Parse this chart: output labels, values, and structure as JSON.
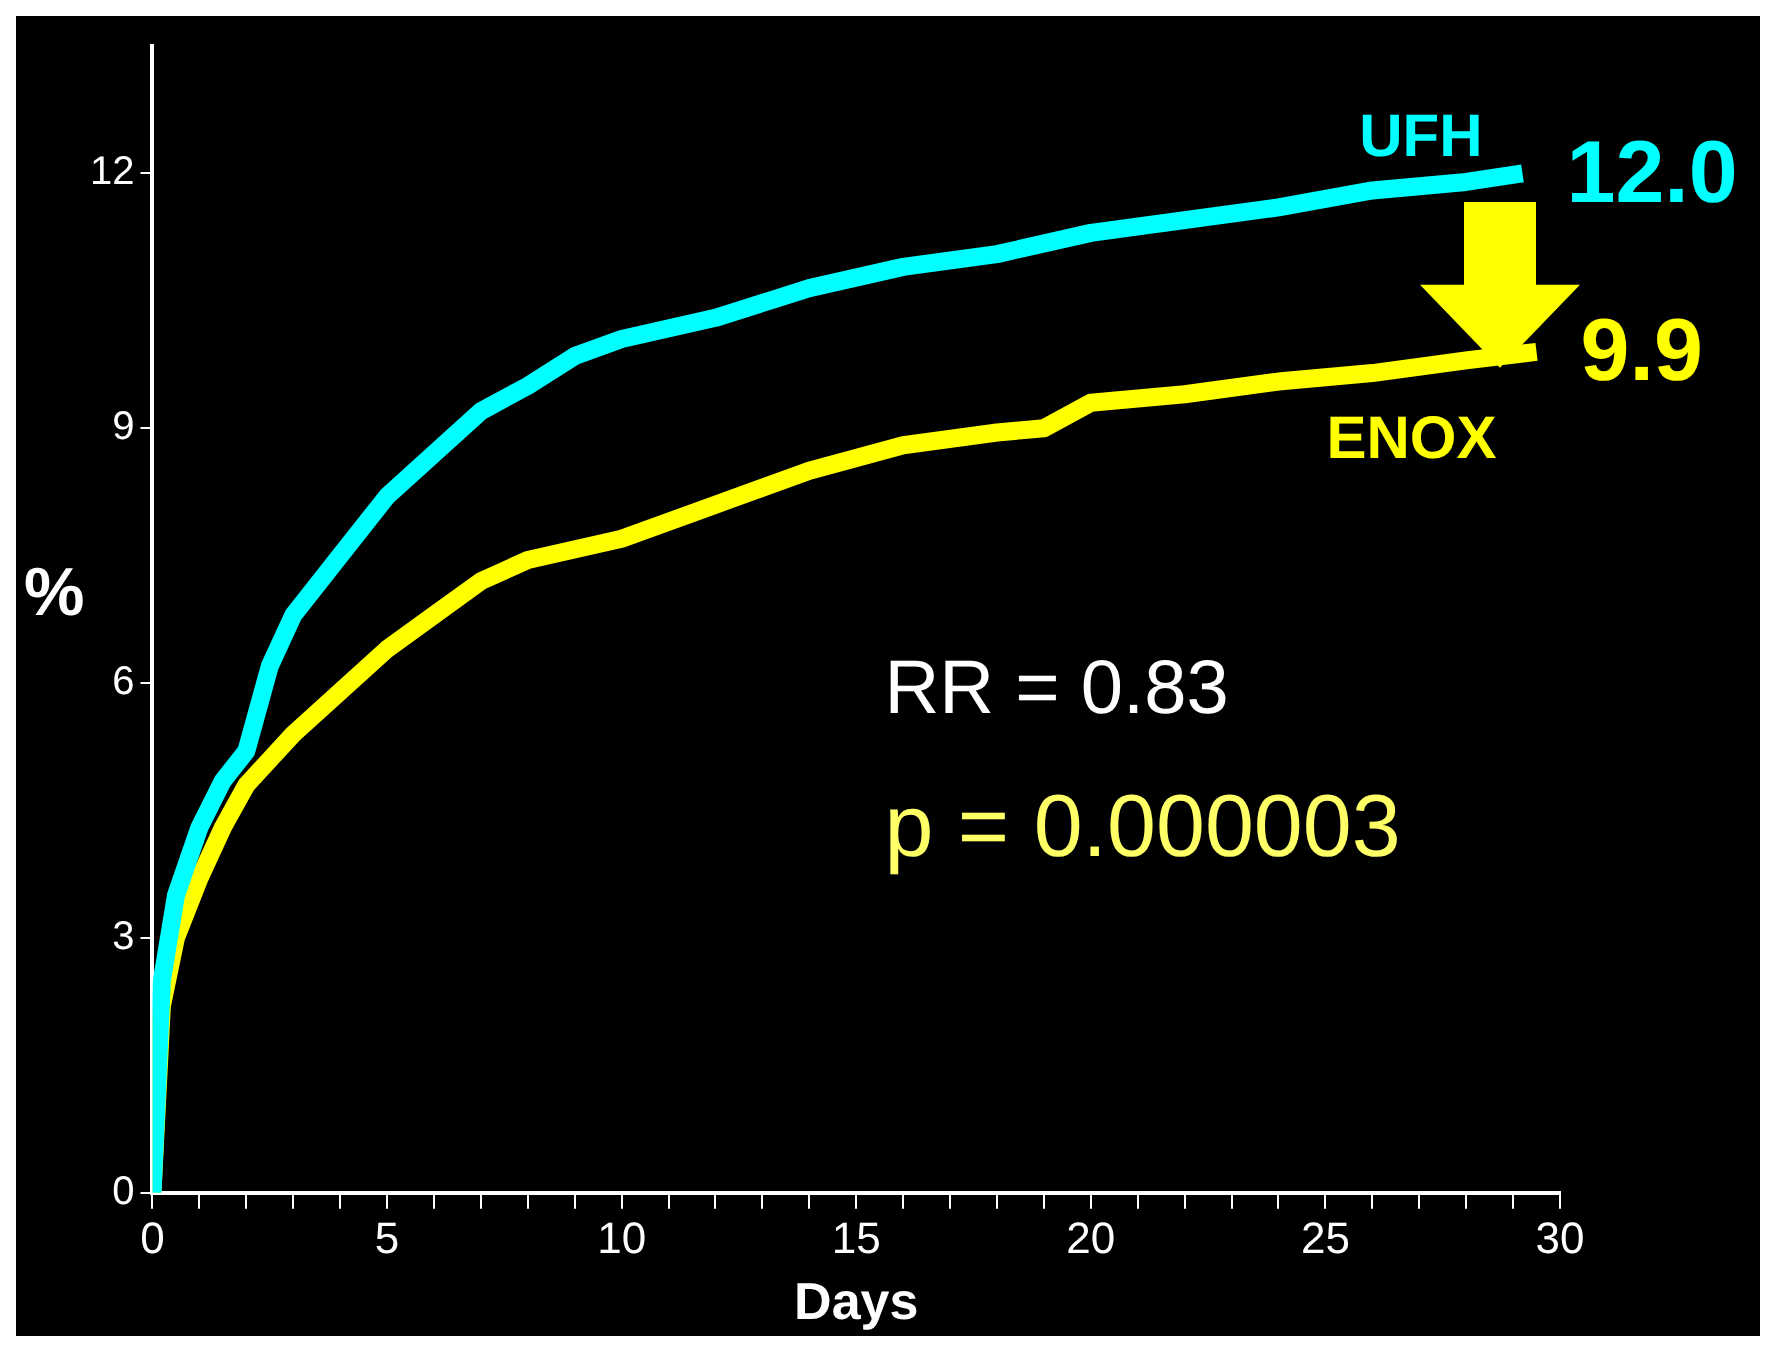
{
  "chart_data": {
    "type": "line",
    "xlabel": "Days",
    "ylabel": "%",
    "xlim": [
      0,
      30
    ],
    "ylim": [
      0,
      13.5
    ],
    "xticks": [
      0,
      {
        "value": 1,
        "label": null
      },
      {
        "value": 2,
        "label": null
      },
      {
        "value": 3,
        "label": null
      },
      {
        "value": 4,
        "label": null
      },
      5,
      {
        "value": 6,
        "label": null
      },
      {
        "value": 7,
        "label": null
      },
      {
        "value": 8,
        "label": null
      },
      {
        "value": 9,
        "label": null
      },
      10,
      {
        "value": 11,
        "label": null
      },
      {
        "value": 12,
        "label": null
      },
      {
        "value": 13,
        "label": null
      },
      {
        "value": 14,
        "label": null
      },
      15,
      {
        "value": 16,
        "label": null
      },
      {
        "value": 17,
        "label": null
      },
      {
        "value": 18,
        "label": null
      },
      {
        "value": 19,
        "label": null
      },
      20,
      {
        "value": 21,
        "label": null
      },
      {
        "value": 22,
        "label": null
      },
      {
        "value": 23,
        "label": null
      },
      {
        "value": 24,
        "label": null
      },
      25,
      {
        "value": 26,
        "label": null
      },
      {
        "value": 27,
        "label": null
      },
      {
        "value": 28,
        "label": null
      },
      {
        "value": 29,
        "label": null
      },
      30
    ],
    "yticks": [
      0,
      3,
      6,
      9,
      12
    ],
    "grid": false,
    "legend": false,
    "marker": "none",
    "line_style": "solid",
    "series": [
      {
        "name": "UFH",
        "color": "#00ffff",
        "x": [
          0,
          0.2,
          0.5,
          1,
          1.5,
          2,
          2.5,
          3,
          4,
          5,
          6,
          7,
          8,
          9,
          10,
          12,
          14,
          16,
          18,
          20,
          22,
          24,
          26,
          28,
          29.2
        ],
        "values": [
          0,
          2.5,
          3.5,
          4.3,
          4.85,
          5.2,
          6.2,
          6.8,
          7.5,
          8.2,
          8.7,
          9.2,
          9.5,
          9.85,
          10.05,
          10.3,
          10.65,
          10.9,
          11.05,
          11.3,
          11.45,
          11.6,
          11.8,
          11.9,
          12.0
        ]
      },
      {
        "name": "ENOX",
        "color": "#ffff00",
        "x": [
          0,
          0.2,
          0.5,
          1,
          1.5,
          2,
          3,
          4,
          5,
          6,
          7,
          8,
          10,
          12,
          14,
          16,
          18,
          19,
          20,
          22,
          24,
          26,
          28,
          29.5
        ],
        "values": [
          0,
          2.2,
          3.0,
          3.7,
          4.3,
          4.8,
          5.4,
          5.9,
          6.4,
          6.8,
          7.2,
          7.45,
          7.7,
          8.1,
          8.5,
          8.8,
          8.95,
          9.0,
          9.3,
          9.4,
          9.55,
          9.65,
          9.8,
          9.9
        ]
      }
    ],
    "annotations": [
      {
        "text": "12.0",
        "x": 29.2,
        "y": 12.0
      },
      {
        "text": "9.9",
        "x": 29.5,
        "y": 9.9
      },
      "RR = 0.83",
      "p = 0.000003"
    ]
  }
}
